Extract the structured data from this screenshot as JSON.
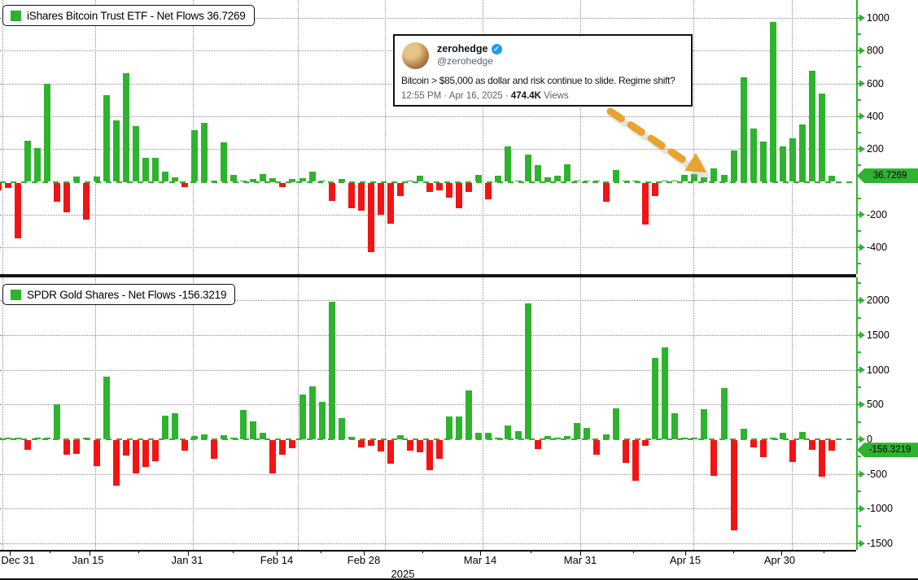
{
  "bitcoin_panel": {
    "legend_text": "iShares Bitcoin Trust ETF - Net Flows 36.7269",
    "badge_value": "36.7269",
    "y_tick_labels": [
      "1000",
      "800",
      "600",
      "400",
      "200",
      "-200",
      "-400"
    ]
  },
  "gold_panel": {
    "legend_text": "SPDR Gold Shares - Net Flows -156.3219",
    "badge_value": "-156.3219",
    "y_tick_labels": [
      "2000",
      "1500",
      "1000",
      "500",
      "0",
      "-500",
      "-1000",
      "-1500"
    ]
  },
  "x_axis": {
    "labels": [
      "Dec 31",
      "Jan 15",
      "Jan 31",
      "Feb 14",
      "Feb 28",
      "Mar 14",
      "Mar 31",
      "Apr 15",
      "Apr 30"
    ],
    "year": "2025"
  },
  "tweet": {
    "username": "zerohedge",
    "verified_icon": "check",
    "handle": "@zerohedge",
    "body": "Bitcoin > $85,000 as dollar and risk continue to slide. Regime shift?",
    "meta_prefix": "12:55 PM · Apr 16, 2025 · ",
    "views_count": "474.4K",
    "meta_suffix": " Views"
  },
  "colors": {
    "positive_bar": "#2eb32e",
    "negative_bar": "#f21414",
    "axis_green": "#2eb32e",
    "gridline_gray": "#8a8a8a",
    "arrow_orange": "#e8a42e",
    "verified_blue": "#1d9bf0"
  },
  "chart_data": [
    {
      "type": "bar",
      "title": "iShares Bitcoin Trust ETF - Net Flows",
      "last_value": 36.7269,
      "xlabel": "2025",
      "ylabel": "",
      "ylim": [
        -500,
        1120
      ],
      "x_tick_labels": [
        "Dec 31",
        "Jan 15",
        "Jan 31",
        "Feb 14",
        "Feb 28",
        "Mar 14",
        "Mar 31",
        "Apr 15",
        "Apr 30"
      ],
      "y_gridlines": [
        1000,
        800,
        600,
        400,
        200,
        -200,
        -400
      ],
      "legend_position": "top-left",
      "grid": "dotted",
      "values": [
        -45,
        -30,
        -340,
        250,
        205,
        600,
        -115,
        -180,
        33,
        -225,
        33,
        530,
        375,
        665,
        342,
        147,
        147,
        60,
        26,
        -25,
        317,
        362,
        5,
        241,
        40,
        5,
        20,
        48,
        25,
        -25,
        20,
        22,
        60,
        3,
        -113,
        20,
        -158,
        -170,
        -423,
        -195,
        -250,
        -81,
        3,
        36,
        -58,
        -47,
        -93,
        -157,
        -58,
        41,
        -100,
        37,
        215,
        3,
        167,
        101,
        30,
        38,
        106,
        8,
        3,
        8,
        -115,
        70,
        3,
        3,
        -253,
        -83,
        3,
        3,
        40,
        48,
        30,
        80,
        42,
        190,
        640,
        326,
        245,
        975,
        215,
        265,
        350,
        678,
        537,
        36.7
      ]
    },
    {
      "type": "bar",
      "title": "SPDR Gold Shares - Net Flows",
      "last_value": -156.3219,
      "xlabel": "2025",
      "ylabel": "",
      "ylim": [
        -1600,
        2330
      ],
      "x_tick_labels": [
        "Dec 31",
        "Jan 15",
        "Jan 31",
        "Feb 14",
        "Feb 28",
        "Mar 14",
        "Mar 31",
        "Apr 15",
        "Apr 30"
      ],
      "y_gridlines": [
        2000,
        1500,
        1000,
        500,
        -500,
        -1000,
        -1500
      ],
      "legend_position": "top-left",
      "grid": "dotted",
      "values": [
        5,
        5,
        5,
        -145,
        5,
        5,
        505,
        -215,
        -195,
        5,
        -370,
        900,
        -650,
        -225,
        -485,
        -380,
        -300,
        340,
        370,
        -150,
        45,
        70,
        -270,
        60,
        10,
        420,
        260,
        100,
        -475,
        -210,
        -120,
        645,
        760,
        540,
        1980,
        305,
        30,
        -105,
        -85,
        -160,
        -335,
        60,
        -155,
        -175,
        -430,
        -265,
        325,
        330,
        700,
        90,
        90,
        15,
        205,
        120,
        1960,
        -125,
        45,
        15,
        50,
        240,
        160,
        -205,
        70,
        450,
        -330,
        -585,
        -80,
        1175,
        1320,
        370,
        15,
        10,
        430,
        -520,
        740,
        -1295,
        150,
        -100,
        -250,
        5,
        90,
        -320,
        110,
        -135,
        -525,
        -156.3
      ]
    }
  ]
}
